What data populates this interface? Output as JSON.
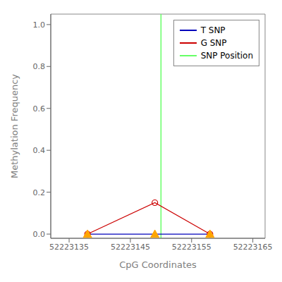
{
  "chart_data": {
    "type": "line",
    "xlabel": "CpG Coordinates",
    "ylabel": "Methylation Frequency",
    "x": [
      52223138,
      52223149,
      52223158
    ],
    "series": [
      {
        "name": "T SNP",
        "color": "#0000bb",
        "values": [
          0.0,
          0.0,
          0.0
        ],
        "marker": "triangle",
        "marker_color": "#ffa500"
      },
      {
        "name": "G SNP",
        "color": "#cc0000",
        "values": [
          0.0,
          0.15,
          0.0
        ],
        "marker": "circle"
      }
    ],
    "vline": {
      "name": "SNP Position",
      "x": 52223150,
      "color": "#66ff66"
    },
    "xlim": [
      52223132,
      52223167
    ],
    "ylim": [
      -0.02,
      1.05
    ],
    "xticks": [
      52223135,
      52223145,
      52223155,
      52223165
    ],
    "yticks": [
      {
        "value": 0,
        "label": "0.0"
      },
      0.2,
      0.4,
      0.6,
      0.8,
      {
        "value": 1,
        "label": "1.0"
      }
    ],
    "legend": "upper right",
    "grid": false
  }
}
